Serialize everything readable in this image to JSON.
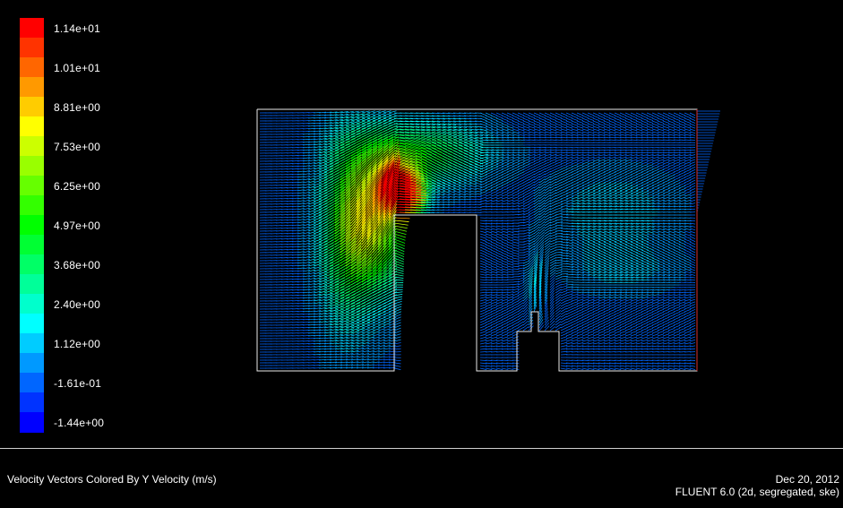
{
  "colorbar": {
    "title": "",
    "labels": [
      "1.14e+01",
      "1.01e+01",
      "8.81e+00",
      "7.53e+00",
      "6.25e+00",
      "4.97e+00",
      "3.68e+00",
      "2.40e+00",
      "1.12e+00",
      "-1.61e-01",
      "-1.44e+00"
    ],
    "colors": [
      "#ff0000",
      "#ff3300",
      "#ff6600",
      "#ff9900",
      "#ffcc00",
      "#ffff00",
      "#ccff00",
      "#99ff00",
      "#66ff00",
      "#33ff00",
      "#00ff00",
      "#00ff33",
      "#00ff66",
      "#00ff99",
      "#00ffcc",
      "#00ffff",
      "#00ccff",
      "#0099ff",
      "#0066ff",
      "#0033ff",
      "#0000ff"
    ]
  },
  "footer": {
    "caption": "Velocity Vectors Colored By Y Velocity (m/s)",
    "date": "Dec 20, 2012",
    "version": "FLUENT 6.0 (2d, segregated, ske)"
  }
}
